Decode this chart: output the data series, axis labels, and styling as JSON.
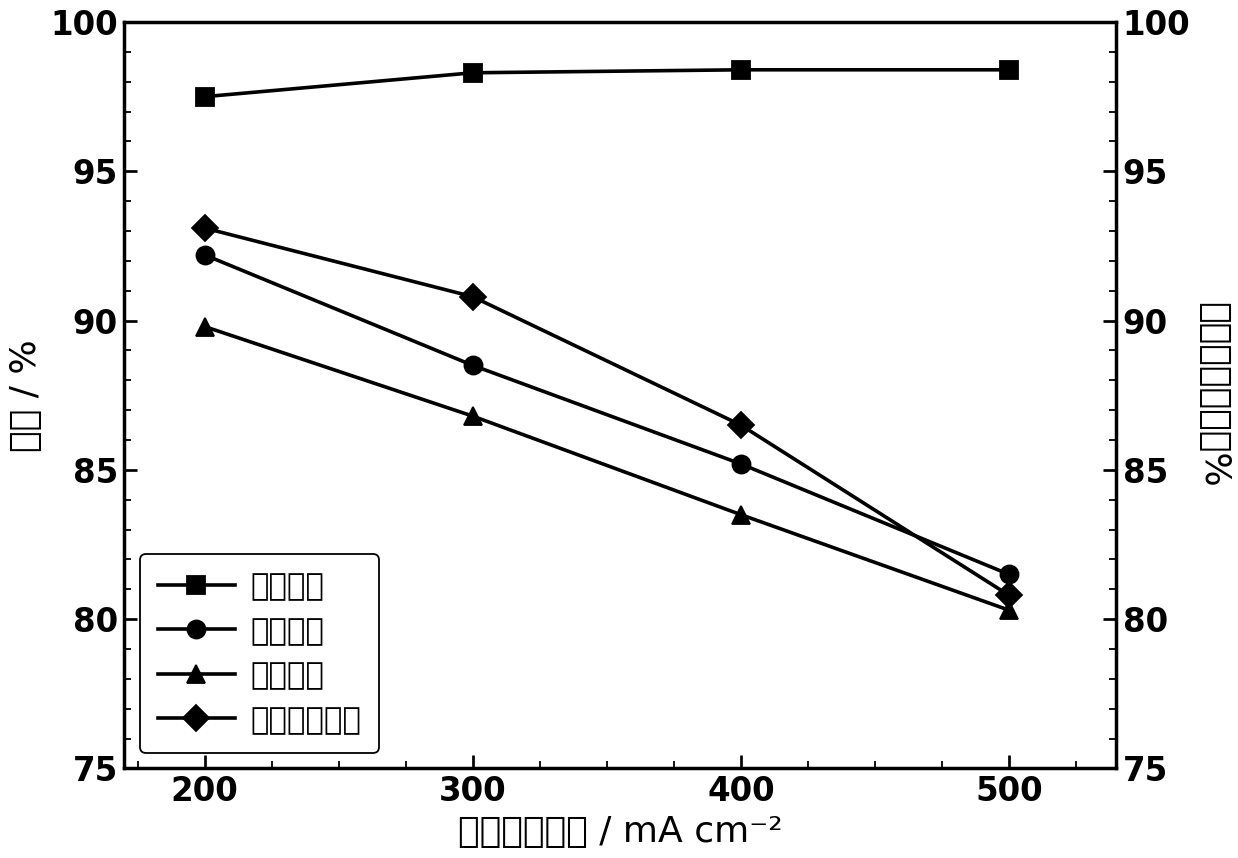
{
  "x": [
    200,
    300,
    400,
    500
  ],
  "coulomb_efficiency": [
    97.5,
    98.3,
    98.4,
    98.4
  ],
  "voltage_efficiency": [
    92.2,
    88.5,
    85.2,
    81.5
  ],
  "energy_efficiency": [
    89.8,
    86.8,
    83.5,
    80.3
  ],
  "electrolyte_utilization": [
    93.1,
    90.8,
    86.5,
    80.8
  ],
  "xlabel": "运行电流密度 / mA cm⁻²",
  "ylabel_left": "效率 / %",
  "ylabel_right": "电解液利用率／%",
  "legend_labels": [
    "库伦效率",
    "电压效率",
    "能量效率",
    "电解液利用率"
  ],
  "ylim": [
    75,
    100
  ],
  "yticks": [
    75,
    80,
    85,
    90,
    95,
    100
  ],
  "xticks": [
    200,
    300,
    400,
    500
  ],
  "line_color": "#000000",
  "background_color": "#ffffff",
  "fontsize_label": 20,
  "fontsize_tick": 18,
  "fontsize_legend": 17,
  "figsize": [
    9.53,
    6.6
  ],
  "dpi": 130
}
